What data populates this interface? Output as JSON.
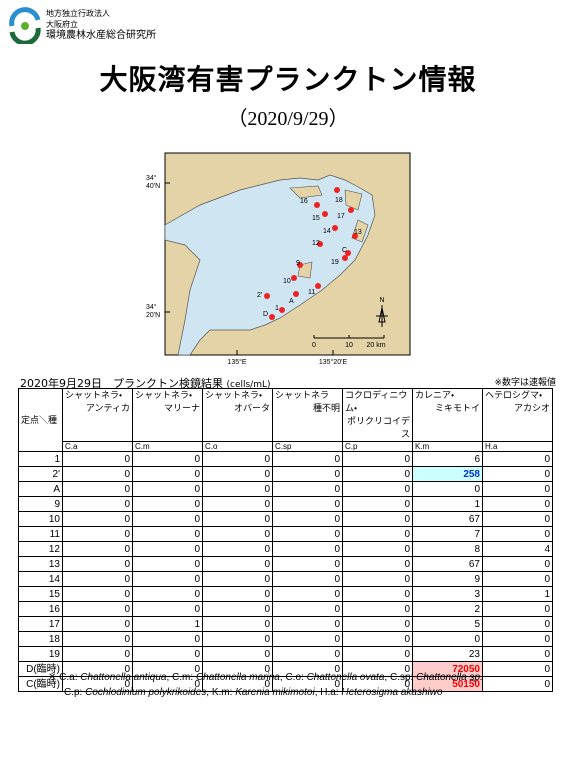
{
  "header": {
    "org_lines": [
      "地方独立行政法人",
      "大阪府立",
      "環境農林水産総合研究所"
    ],
    "title": "大阪湾有害プランクトン情報",
    "subtitle": "（2020/9/29）"
  },
  "map": {
    "lat_labels": [
      "34°\n40'N",
      "34°\n20'N"
    ],
    "lon_labels": [
      "135°E",
      "135°20'E"
    ],
    "scale_labels": [
      "0",
      "10",
      "20 km"
    ],
    "north": "N",
    "stations": [
      "16",
      "18",
      "15",
      "17",
      "14",
      "13",
      "12",
      "C",
      "19",
      "9",
      "10",
      "11",
      "A",
      "2'",
      "1",
      "D"
    ]
  },
  "table": {
    "caption": "2020年9月29日　プランクトン検鏡結果",
    "unit": "(cells/mL)",
    "note": "※数字は速報値",
    "corner": "定点＼種",
    "columns": [
      {
        "line1": "シャットネラ・",
        "line2": "アンティカ",
        "abbr": "C.a"
      },
      {
        "line1": "シャットネラ・",
        "line2": "マリーナ",
        "abbr": "C.m"
      },
      {
        "line1": "シャットネラ・",
        "line2": "オバータ",
        "abbr": "C.o"
      },
      {
        "line1": "シャットネラ",
        "line2": "種不明",
        "abbr": "C.sp"
      },
      {
        "line1": "コクロディニウム・",
        "line2": "ポリクリコイデス",
        "abbr": "C.p"
      },
      {
        "line1": "カレニア・",
        "line2": "ミキモトイ",
        "abbr": "K.m"
      },
      {
        "line1": "ヘテロシグマ・",
        "line2": "アカシオ",
        "abbr": "H.a"
      }
    ],
    "rows": [
      {
        "station": "1",
        "values": [
          0,
          0,
          0,
          0,
          0,
          6,
          0
        ]
      },
      {
        "station": "2'",
        "values": [
          0,
          0,
          0,
          0,
          0,
          258,
          0
        ]
      },
      {
        "station": "A",
        "values": [
          0,
          0,
          0,
          0,
          0,
          0,
          0
        ]
      },
      {
        "station": "9",
        "values": [
          0,
          0,
          0,
          0,
          0,
          1,
          0
        ]
      },
      {
        "station": "10",
        "values": [
          0,
          0,
          0,
          0,
          0,
          67,
          0
        ]
      },
      {
        "station": "11",
        "values": [
          0,
          0,
          0,
          0,
          0,
          7,
          0
        ]
      },
      {
        "station": "12",
        "values": [
          0,
          0,
          0,
          0,
          0,
          8,
          4
        ]
      },
      {
        "station": "13",
        "values": [
          0,
          0,
          0,
          0,
          0,
          67,
          0
        ]
      },
      {
        "station": "14",
        "values": [
          0,
          0,
          0,
          0,
          0,
          9,
          0
        ]
      },
      {
        "station": "15",
        "values": [
          0,
          0,
          0,
          0,
          0,
          3,
          1
        ]
      },
      {
        "station": "16",
        "values": [
          0,
          0,
          0,
          0,
          0,
          2,
          0
        ]
      },
      {
        "station": "17",
        "values": [
          0,
          1,
          0,
          0,
          0,
          5,
          0
        ]
      },
      {
        "station": "18",
        "values": [
          0,
          0,
          0,
          0,
          0,
          0,
          0
        ]
      },
      {
        "station": "19",
        "values": [
          0,
          0,
          0,
          0,
          0,
          23,
          0
        ]
      },
      {
        "station": "D(臨時)",
        "values": [
          0,
          0,
          0,
          0,
          0,
          72050,
          0
        ]
      },
      {
        "station": "C(臨時)",
        "values": [
          0,
          0,
          0,
          0,
          0,
          50150,
          0
        ]
      }
    ],
    "highlights": [
      {
        "row": 1,
        "col": 5,
        "background": "#ccffff",
        "color": "#0033cc"
      },
      {
        "row": 14,
        "col": 5,
        "background": "#ffcccc",
        "color": "#ff0000"
      },
      {
        "row": 15,
        "col": 5,
        "background": "#ffcccc",
        "color": "#ff0000"
      }
    ]
  },
  "footnote": {
    "marker": "※",
    "lines": [
      [
        {
          "abbr": "C.a:",
          "name": "Chattonella antiqua"
        },
        {
          "abbr": "C.m:",
          "name": "Chattonella marina"
        },
        {
          "abbr": "C.o:",
          "name": "Chattonella ovata"
        },
        {
          "abbr": "C.sp:",
          "name": "Chattonella sp."
        }
      ],
      [
        {
          "abbr": "C.p:",
          "name": "Cochlodinium polykrikoides"
        },
        {
          "abbr": "K.m:",
          "name": "Karenia mikimotoi"
        },
        {
          "abbr": "H.a:",
          "name": "Heterosigma akashiwo"
        }
      ]
    ]
  }
}
